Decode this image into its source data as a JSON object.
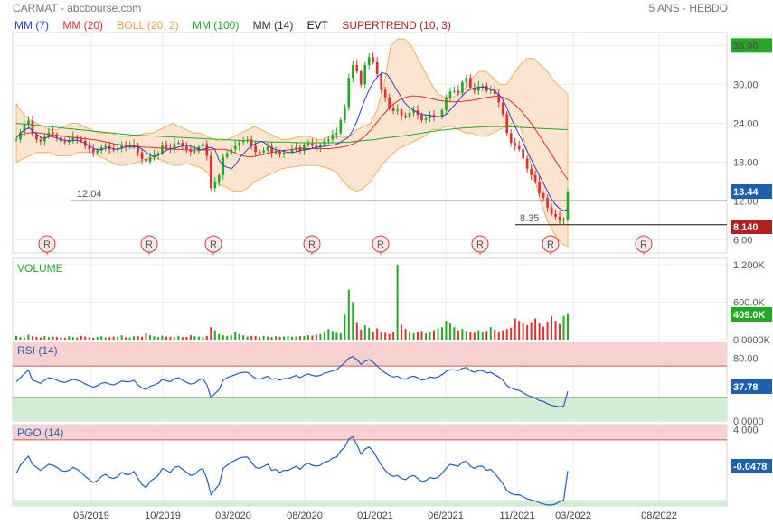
{
  "header": {
    "title": "CARMAT - abcbourse.com",
    "period": "5 ANS - HEBDO"
  },
  "legend": [
    {
      "label": "MM (7)",
      "color": "#2f3fd6"
    },
    {
      "label": "MM (20)",
      "color": "#e03030"
    },
    {
      "label": "BOLL (20, 2)",
      "color": "#f0a040"
    },
    {
      "label": "MM (100)",
      "color": "#22aa22"
    },
    {
      "label": "MM (14)",
      "color": "#333333"
    },
    {
      "label": "EVT",
      "color": "#111111"
    },
    {
      "label": "SUPERTREND (10, 3)",
      "color": "#b02020"
    }
  ],
  "colors": {
    "up": "#22aa22",
    "down": "#e03030",
    "boll_fill": "#fbdcc0",
    "rsi_line": "#2060c0",
    "overbought_fill": "#f8d0d0",
    "oversold_fill": "#d4ecd4"
  },
  "chart_data": [
    {
      "type": "candlestick",
      "name": "price",
      "y_ticks": [
        "36.00",
        "30.00",
        "24.00",
        "18.00",
        "12.00",
        "6.00"
      ],
      "ylim": [
        4,
        38
      ],
      "last_price": "13.44",
      "supertrend_value": "8.140",
      "support_levels": [
        {
          "label": "12.04",
          "value": 12.04
        },
        {
          "label": "8.35",
          "value": 8.35
        }
      ],
      "events": [
        {
          "label": "R",
          "date": "2019-03"
        },
        {
          "label": "R",
          "date": "2019-09"
        },
        {
          "label": "R",
          "date": "2020-01"
        },
        {
          "label": "R",
          "date": "2020-08"
        },
        {
          "label": "R",
          "date": "2020-12"
        },
        {
          "label": "R",
          "date": "2021-06"
        },
        {
          "label": "R",
          "date": "2021-12"
        },
        {
          "label": "R",
          "date": "2022-06"
        }
      ],
      "x_ticks": [
        "05/2019",
        "10/2019",
        "03/2020",
        "08/2020",
        "01/2021",
        "06/2021",
        "11/2021",
        "03/2022",
        "08/2022"
      ],
      "close_path": [
        21.5,
        22.6,
        23.8,
        24.4,
        22.3,
        21.5,
        21.2,
        21.9,
        22.6,
        22.3,
        21.8,
        21.2,
        21.1,
        21.4,
        21.9,
        21.6,
        21.3,
        20.5,
        20.0,
        19.5,
        19.8,
        20.3,
        20.5,
        20.0,
        19.9,
        20.1,
        20.7,
        20.4,
        20.5,
        20.7,
        19.5,
        18.5,
        18.1,
        18.8,
        19.1,
        19.4,
        20.7,
        20.2,
        20.0,
        20.9,
        21.0,
        20.5,
        20.0,
        19.6,
        19.7,
        20.4,
        20.8,
        19.0,
        14.0,
        14.9,
        16.0,
        18.8,
        19.4,
        20.0,
        20.5,
        21.1,
        21.4,
        21.5,
        20.5,
        19.6,
        19.5,
        19.8,
        20.4,
        19.4,
        19.6,
        19.2,
        19.5,
        19.6,
        20.0,
        20.3,
        19.8,
        20.6,
        20.9,
        20.6,
        20.3,
        20.7,
        21.3,
        21.5,
        22.3,
        22.5,
        24.5,
        26.5,
        31.0,
        33.0,
        32.0,
        30.0,
        33.0,
        34.2,
        33.4,
        31.6,
        29.2,
        28.0,
        26.3,
        25.9,
        26.1,
        25.2,
        25.0,
        25.6,
        26.0,
        25.3,
        24.5,
        24.8,
        25.3,
        25.0,
        25.1,
        26.0,
        28.0,
        28.9,
        29.0,
        28.7,
        30.3,
        31.0,
        29.5,
        29.0,
        29.7,
        29.8,
        29.0,
        29.2,
        28.5,
        27.2,
        25.4,
        22.5,
        21.0,
        20.5,
        20.0,
        18.6,
        17.0,
        16.0,
        15.0,
        13.2,
        12.5,
        11.0,
        10.0,
        9.6,
        9.0,
        9.2,
        13.44
      ],
      "mm7_path": [
        21.7,
        22.5,
        23.0,
        23.3,
        22.7,
        22.2,
        21.7,
        21.8,
        22.0,
        21.8,
        21.6,
        21.4,
        21.3,
        21.3,
        21.4,
        21.2,
        20.9,
        20.5,
        20.1,
        19.9,
        20.0,
        20.2,
        20.2,
        20.0,
        20.1,
        20.3,
        20.4,
        20.3,
        20.4,
        20.1,
        19.6,
        19.1,
        18.8,
        19.1,
        19.5,
        19.9,
        20.1,
        20.2,
        20.4,
        20.6,
        20.6,
        20.3,
        20.1,
        19.9,
        20.1,
        20.3,
        20.1,
        18.4,
        17.5,
        17.2,
        17.0,
        17.7,
        18.8,
        19.5,
        20.2,
        20.7,
        21.0,
        21.2,
        20.8,
        20.3,
        20.0,
        19.8,
        19.7,
        19.5,
        19.5,
        19.6,
        19.8,
        19.9,
        20.0,
        20.2,
        20.3,
        20.4,
        20.5,
        20.6,
        20.7,
        21.0,
        21.4,
        21.8,
        22.8,
        24.2,
        26.1,
        27.8,
        29.3,
        30.4,
        31.3,
        31.8,
        31.6,
        30.7,
        29.5,
        28.4,
        27.3,
        26.6,
        26.1,
        25.7,
        25.4,
        25.3,
        25.2,
        25.1,
        25.0,
        25.1,
        25.5,
        26.3,
        27.0,
        27.8,
        28.6,
        29.1,
        29.4,
        29.5,
        29.6,
        29.5,
        29.3,
        29.0,
        28.4,
        27.6,
        26.2,
        24.6,
        23.2,
        21.9,
        20.5,
        19.1,
        17.8,
        16.5,
        15.2,
        13.9,
        12.6,
        11.6,
        10.9,
        10.5,
        10.7
      ],
      "mm20_path": [
        22.0,
        22.3,
        22.5,
        22.6,
        22.5,
        22.4,
        22.2,
        22.1,
        22.0,
        21.9,
        21.8,
        21.7,
        21.6,
        21.5,
        21.4,
        21.2,
        21.0,
        20.8,
        20.7,
        20.6,
        20.5,
        20.4,
        20.3,
        20.3,
        20.2,
        20.2,
        20.1,
        20.0,
        20.0,
        19.9,
        19.9,
        19.9,
        19.9,
        19.9,
        20.0,
        20.0,
        20.0,
        19.7,
        19.3,
        19.0,
        18.8,
        18.9,
        19.1,
        19.3,
        19.5,
        19.7,
        19.8,
        19.9,
        20.0,
        20.1,
        20.1,
        20.1,
        20.1,
        20.1,
        20.1,
        20.2,
        20.3,
        20.5,
        20.8,
        21.3,
        22.0,
        22.9,
        24.0,
        25.1,
        26.1,
        27.0,
        27.6,
        28.0,
        28.2,
        28.2,
        28.1,
        27.9,
        27.7,
        27.5,
        27.4,
        27.3,
        27.3,
        27.4,
        27.5,
        27.6,
        27.8,
        28.0,
        28.1,
        28.2,
        28.0,
        27.5,
        26.8,
        25.9,
        24.8,
        23.6,
        22.3,
        20.9,
        19.5,
        18.1,
        16.6,
        15.3
      ],
      "mm100_path": [
        24.0,
        23.8,
        23.6,
        23.4,
        23.2,
        23.0,
        22.8,
        22.6,
        22.4,
        22.2,
        22.1,
        22.0,
        21.9,
        21.8,
        21.7,
        21.6,
        21.5,
        21.4,
        21.3,
        21.2,
        21.1,
        21.1,
        21.0,
        21.0,
        21.0,
        21.0,
        21.1,
        21.3,
        21.5,
        21.8,
        22.0,
        22.3,
        22.6,
        22.9,
        23.1,
        23.3,
        23.4,
        23.5,
        23.5,
        23.4,
        23.3,
        23.2,
        23.1,
        23.0
      ],
      "boll_upper_path": [
        27,
        25.5,
        24.5,
        24,
        23.5,
        23,
        23,
        23.5,
        24,
        24,
        23.5,
        23,
        22.5,
        22.5,
        22.5,
        22,
        22,
        22,
        22.2,
        22.5,
        22.5,
        23,
        23.5,
        24,
        23.5,
        23,
        22.5,
        22.5,
        22,
        21.5,
        21.2,
        21.5,
        22,
        22.5,
        23,
        23.5,
        23,
        22.5,
        22,
        21.5,
        21.5,
        21.8,
        22,
        22,
        21.5,
        21.5,
        22,
        22,
        21.8,
        22,
        23,
        23.5,
        24,
        26,
        30,
        36,
        37,
        37,
        36,
        34,
        32,
        30,
        28.5,
        28,
        28,
        28.5,
        29.5,
        31,
        32,
        32,
        31,
        30,
        30,
        31.5,
        33,
        34,
        34,
        33,
        32,
        30.5,
        29.5,
        28.5
      ],
      "boll_lower_path": [
        18,
        18.5,
        19,
        19.5,
        19.5,
        19.5,
        19,
        19,
        19,
        19.5,
        19.5,
        19.5,
        19,
        18.5,
        18,
        17.5,
        17.5,
        17.8,
        18,
        18.5,
        18.5,
        18.5,
        18,
        17.5,
        17.5,
        17.8,
        17.5,
        17.2,
        16.5,
        15,
        14.5,
        14,
        13.5,
        13.5,
        14,
        15,
        15.5,
        16,
        16.5,
        17,
        17.2,
        17.3,
        17.5,
        17.5,
        17.5,
        17.3,
        17,
        16.5,
        15,
        14,
        13.5,
        14,
        15,
        16.5,
        18,
        19,
        20,
        20.5,
        21,
        21.5,
        22,
        23,
        23,
        23.5,
        23.5,
        23,
        22.5,
        22.5,
        22,
        22,
        22.5,
        23,
        23.5,
        24,
        23.5,
        20,
        16,
        12,
        9,
        7,
        5.5,
        5
      ]
    },
    {
      "type": "bar",
      "name": "volume",
      "title": "VOLUME",
      "y_ticks": [
        "1 200K",
        "600.0K",
        "0.0000K"
      ],
      "ylim": [
        0,
        1300
      ],
      "last_value": "409.0K",
      "values": [
        60,
        40,
        30,
        80,
        55,
        45,
        35,
        60,
        40,
        50,
        45,
        35,
        30,
        55,
        40,
        35,
        60,
        50,
        40,
        30,
        45,
        55,
        35,
        40,
        50,
        45,
        70,
        40,
        35,
        55,
        60,
        45,
        100,
        70,
        55,
        40,
        65,
        50,
        45,
        35,
        60,
        40,
        45,
        70,
        55,
        50,
        40,
        60,
        200,
        150,
        90,
        70,
        60,
        80,
        120,
        90,
        70,
        50,
        60,
        55,
        45,
        60,
        50,
        40,
        55,
        45,
        50,
        60,
        45,
        50,
        55,
        60,
        70,
        65,
        80,
        90,
        130,
        170,
        140,
        110,
        100,
        400,
        800,
        600,
        280,
        160,
        230,
        190,
        120,
        180,
        130,
        110,
        90,
        120,
        1200,
        240,
        170,
        130,
        100,
        120,
        140,
        100,
        130,
        150,
        180,
        200,
        300,
        260,
        200,
        150,
        170,
        140,
        130,
        110,
        150,
        120,
        140,
        200,
        160,
        130,
        150,
        170,
        190,
        340,
        300,
        260,
        230,
        280,
        340,
        260,
        210,
        290,
        380,
        300,
        250,
        380,
        409
      ]
    },
    {
      "type": "line",
      "name": "rsi",
      "title": "RSI (14)",
      "y_ticks": [
        "80.00",
        "0.0000"
      ],
      "ylim": [
        0,
        100
      ],
      "zones": [
        70,
        30
      ],
      "last_value": "37.78",
      "values": [
        50,
        55,
        60,
        65,
        52,
        50,
        48,
        52,
        55,
        54,
        52,
        50,
        49,
        51,
        53,
        52,
        50,
        47,
        45,
        43,
        45,
        48,
        49,
        47,
        46,
        48,
        51,
        50,
        50,
        52,
        46,
        42,
        40,
        44,
        46,
        48,
        53,
        51,
        50,
        54,
        55,
        52,
        49,
        47,
        48,
        52,
        54,
        46,
        30,
        35,
        40,
        52,
        55,
        57,
        59,
        61,
        62,
        62,
        58,
        54,
        53,
        55,
        57,
        53,
        54,
        52,
        54,
        54,
        56,
        58,
        55,
        58,
        60,
        58,
        57,
        58,
        61,
        62,
        64,
        65,
        70,
        74,
        80,
        82,
        78,
        72,
        76,
        78,
        75,
        70,
        65,
        61,
        58,
        56,
        57,
        54,
        53,
        56,
        57,
        55,
        52,
        53,
        56,
        55,
        56,
        59,
        63,
        65,
        65,
        64,
        67,
        68,
        64,
        62,
        64,
        64,
        61,
        62,
        59,
        56,
        52,
        45,
        42,
        40,
        39,
        36,
        33,
        31,
        29,
        26,
        25,
        22,
        20,
        19,
        18,
        19,
        37.78
      ]
    },
    {
      "type": "line",
      "name": "pgo",
      "title": "PGO (14)",
      "y_ticks": [
        "4.000"
      ],
      "ylim": [
        -3.5,
        4.5
      ],
      "zones": [
        3,
        -3
      ],
      "last_value": "-0.0478",
      "values": [
        -0.3,
        0.5,
        1.0,
        1.4,
        0.6,
        0.3,
        0.0,
        0.3,
        0.6,
        0.5,
        0.3,
        0.0,
        -0.1,
        0.0,
        0.3,
        0.1,
        -0.2,
        -0.6,
        -0.9,
        -1.2,
        -1.0,
        -0.6,
        -0.4,
        -0.7,
        -0.8,
        -0.6,
        -0.2,
        -0.4,
        -0.4,
        -0.1,
        -0.8,
        -1.4,
        -1.7,
        -1.1,
        -0.8,
        -0.5,
        0.2,
        0.0,
        -0.2,
        0.3,
        0.4,
        0.1,
        -0.2,
        -0.5,
        -0.4,
        0.0,
        0.2,
        -0.8,
        -2.4,
        -1.9,
        -1.4,
        0.2,
        0.5,
        0.8,
        1.0,
        1.2,
        1.3,
        1.3,
        0.8,
        0.3,
        0.2,
        0.4,
        0.6,
        0.0,
        0.1,
        -0.2,
        0.0,
        0.0,
        0.2,
        0.4,
        0.1,
        0.5,
        0.7,
        0.5,
        0.4,
        0.5,
        0.8,
        0.9,
        1.2,
        1.3,
        1.9,
        2.3,
        3.1,
        3.3,
        2.5,
        1.6,
        2.1,
        2.3,
        1.9,
        1.2,
        0.5,
        0.0,
        -0.4,
        -0.6,
        -0.5,
        -0.8,
        -0.9,
        -0.6,
        -0.5,
        -0.8,
        -1.1,
        -1.0,
        -0.7,
        -0.8,
        -0.7,
        -0.3,
        0.2,
        0.6,
        0.5,
        0.4,
        0.8,
        0.9,
        0.4,
        0.2,
        0.4,
        0.4,
        0.0,
        0.1,
        -0.3,
        -0.8,
        -1.3,
        -2.0,
        -2.3,
        -2.4,
        -2.4,
        -2.6,
        -2.8,
        -2.9,
        -3.0,
        -3.2,
        -3.3,
        -3.4,
        -3.4,
        -3.3,
        -3.1,
        -2.9,
        -0.0478
      ]
    }
  ]
}
